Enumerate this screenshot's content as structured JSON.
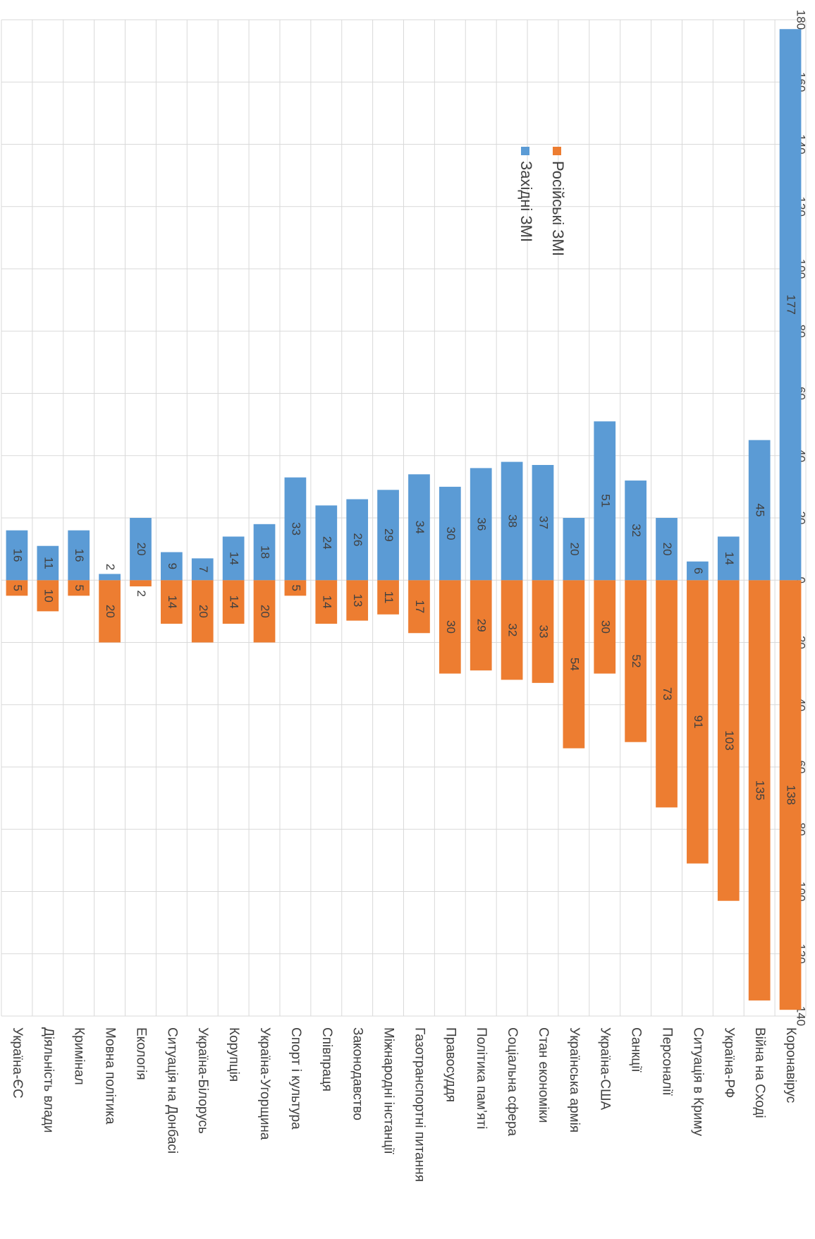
{
  "chart_data": {
    "type": "diverging-bar",
    "categories": [
      "Україна-ЄС",
      "Діяльність влади",
      "Кримінал",
      "Мовна політика",
      "Екологія",
      "Ситуація на Донбасі",
      "Україна-Білорусь",
      "Корупція",
      "Україна-Угорщина",
      "Спорт і культура",
      "Співпраця",
      "Законодавство",
      "Міжнародні інстанції",
      "Газотранспортні питання",
      "Правосуддя",
      "Політика пам’яті",
      "Соціальна сфера",
      "Стан економіки",
      "Українська армія",
      "Україна-США",
      "Санкції",
      "Персоналії",
      "Ситуація в Криму",
      "Україна-РФ",
      "Війна на Сході",
      "Коронавірус"
    ],
    "series": [
      {
        "name": "Російські ЗМІ",
        "color": "#ed7d31",
        "side": "below",
        "values": [
          5,
          10,
          5,
          20,
          2,
          14,
          20,
          14,
          20,
          5,
          14,
          13,
          11,
          17,
          30,
          29,
          32,
          33,
          54,
          30,
          52,
          73,
          91,
          103,
          135,
          138
        ]
      },
      {
        "name": "Західні ЗМІ",
        "color": "#5b9bd5",
        "side": "above",
        "values": [
          16,
          11,
          16,
          2,
          20,
          9,
          7,
          14,
          18,
          33,
          24,
          26,
          29,
          34,
          30,
          36,
          38,
          37,
          20,
          51,
          32,
          20,
          6,
          14,
          45,
          177
        ]
      }
    ],
    "ylim": [
      -140,
      180
    ],
    "yticks": [
      {
        "value": -140,
        "label": "140"
      },
      {
        "value": -120,
        "label": "120"
      },
      {
        "value": -100,
        "label": "100"
      },
      {
        "value": -80,
        "label": "80"
      },
      {
        "value": -60,
        "label": "60"
      },
      {
        "value": -40,
        "label": "40"
      },
      {
        "value": -20,
        "label": "20"
      },
      0,
      20,
      40,
      60,
      80,
      100,
      120,
      140,
      160,
      180
    ],
    "grid": true
  }
}
